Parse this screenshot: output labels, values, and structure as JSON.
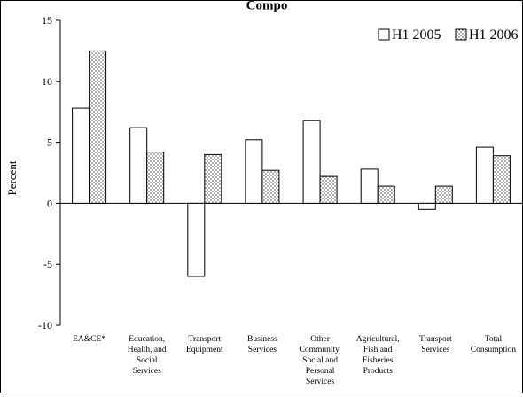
{
  "chart_data": {
    "type": "bar",
    "title_partial": "Compo",
    "ylabel": "Percent",
    "ylim": [
      -10,
      15
    ],
    "yticks": [
      15,
      10,
      5,
      0,
      -5,
      -10
    ],
    "yticks_labels": [
      "15",
      "10",
      "5",
      "0",
      "-5",
      "-10"
    ],
    "legend_position": "top-right",
    "grid": false,
    "categories": [
      [
        "EA&CE*"
      ],
      [
        "Education,",
        "Health, and",
        "Social",
        "Services"
      ],
      [
        "Transport",
        "Equipment"
      ],
      [
        "Business",
        "Services"
      ],
      [
        "Other",
        "Community,",
        "Social and",
        "Personal",
        "Services"
      ],
      [
        "Agricultural,",
        "Fish and",
        "Fisheries",
        "Products"
      ],
      [
        "Transport",
        "Services"
      ],
      [
        "Total",
        "Consumption"
      ]
    ],
    "series": [
      {
        "name": "H1 2005",
        "pattern": "hollow",
        "values": [
          7.8,
          6.2,
          -6.0,
          5.2,
          6.8,
          2.8,
          -0.5,
          4.6
        ]
      },
      {
        "name": "H1 2006",
        "pattern": "dotted",
        "values": [
          12.5,
          4.2,
          4.0,
          2.7,
          2.2,
          1.4,
          1.4,
          3.9
        ]
      }
    ],
    "colors": {
      "axis": "#000000",
      "bar_fill": "#ffffff",
      "dot": "#555555"
    }
  }
}
